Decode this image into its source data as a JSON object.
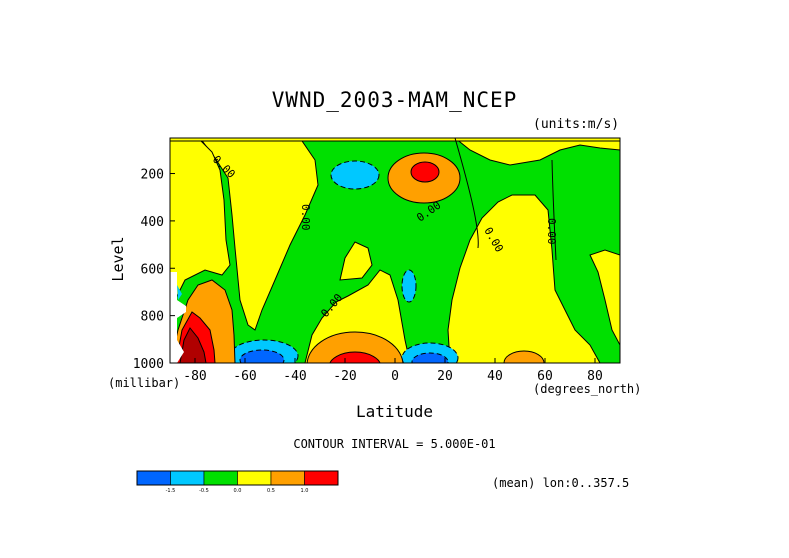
{
  "chart_data": {
    "type": "heatmap",
    "title": "VWND_2003-MAM_NCEP",
    "units_label": "(units:m/s)",
    "xlabel": "Latitude",
    "x_units": "(degrees_north)",
    "ylabel": "Level",
    "y_units": "(millibar)",
    "xlim": [
      -90,
      90
    ],
    "ylim": [
      1000,
      50
    ],
    "x_ticks": [
      "-80",
      "-60",
      "-40",
      "-20",
      "0",
      "20",
      "40",
      "60",
      "80"
    ],
    "y_ticks": [
      "200",
      "400",
      "600",
      "800",
      "1000"
    ],
    "contour_interval": "CONTOUR INTERVAL = 5.000E-01",
    "contour_labels": [
      "0.00",
      "0.00",
      "0.00",
      "0.00",
      "0.00",
      "0.00"
    ],
    "colorbar": {
      "bins": [
        "#0066ff",
        "#00c8ff",
        "#00e000",
        "#ffff00",
        "#ffa000",
        "#ff0000"
      ],
      "labels": [
        "-1.5",
        "-0.5",
        "0.0",
        "0.5",
        "1.0"
      ]
    },
    "footer": "(mean) lon:0..357.5",
    "features": [
      {
        "lat": 12,
        "level": 160,
        "sign": "positive",
        "peak": 2.5
      },
      {
        "lat": -22,
        "level": 180,
        "sign": "negative",
        "peak": -1.0
      },
      {
        "lat": -20,
        "level": 970,
        "sign": "positive",
        "peak": 2.5
      },
      {
        "lat": -58,
        "level": 980,
        "sign": "negative",
        "peak": -2.0
      },
      {
        "lat": 12,
        "level": 980,
        "sign": "negative",
        "peak": -2.0
      },
      {
        "lat": 10,
        "level": 630,
        "sign": "negative",
        "peak": -0.5
      },
      {
        "lat": -82,
        "level": 920,
        "sign": "positive",
        "peak": 3.0
      },
      {
        "lat": 50,
        "level": 990,
        "sign": "positive",
        "peak": 1.0
      }
    ]
  }
}
